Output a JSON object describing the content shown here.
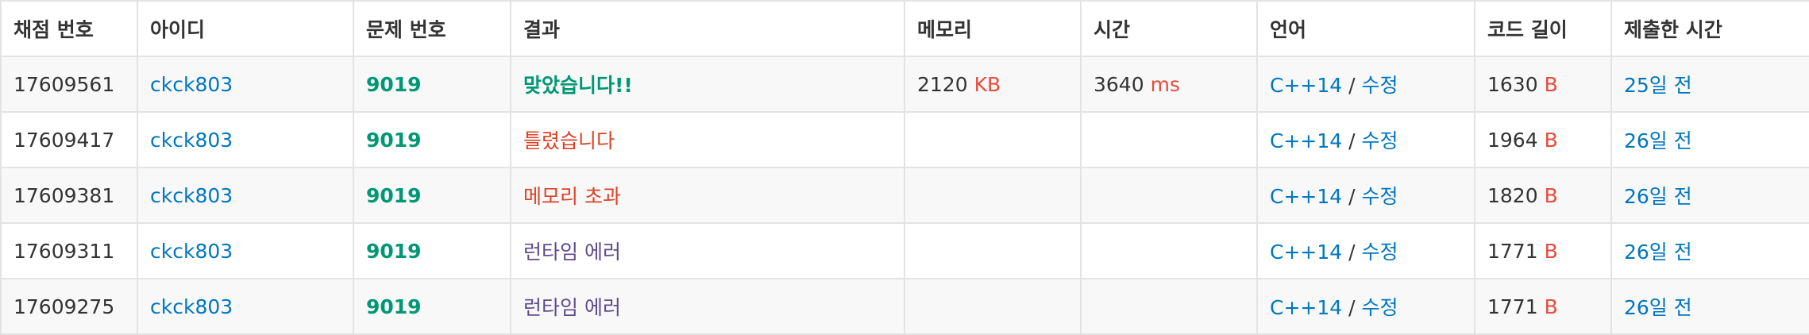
{
  "colors": {
    "link": "#0076c0",
    "accepted": "#009874",
    "error_red": "#dd4124",
    "runtime_error": "#5f4b8b",
    "unit": "#e74c3c",
    "row_alt": "#f8f8f8",
    "border": "#e3e3e3"
  },
  "headers": {
    "submission_id": "채점 번호",
    "user_id": "아이디",
    "problem_id": "문제 번호",
    "result": "결과",
    "memory": "메모리",
    "time": "시간",
    "language": "언어",
    "code_length": "코드 길이",
    "submitted_at": "제출한 시간"
  },
  "rows": [
    {
      "submission_id": "17609561",
      "user_id": "ckck803",
      "problem_id": "9019",
      "result": "맞았습니다!!",
      "result_status": "accepted",
      "memory_value": "2120",
      "memory_unit": "KB",
      "time_value": "3640",
      "time_unit": "ms",
      "language": "C++14",
      "lang_separator": " / ",
      "edit_label": "수정",
      "code_length_value": "1630",
      "code_length_unit": "B",
      "submitted_at": "25일 전"
    },
    {
      "submission_id": "17609417",
      "user_id": "ckck803",
      "problem_id": "9019",
      "result": "틀렸습니다",
      "result_status": "wrong",
      "memory_value": "",
      "memory_unit": "",
      "time_value": "",
      "time_unit": "",
      "language": "C++14",
      "lang_separator": " / ",
      "edit_label": "수정",
      "code_length_value": "1964",
      "code_length_unit": "B",
      "submitted_at": "26일 전"
    },
    {
      "submission_id": "17609381",
      "user_id": "ckck803",
      "problem_id": "9019",
      "result": "메모리 초과",
      "result_status": "memory",
      "memory_value": "",
      "memory_unit": "",
      "time_value": "",
      "time_unit": "",
      "language": "C++14",
      "lang_separator": " / ",
      "edit_label": "수정",
      "code_length_value": "1820",
      "code_length_unit": "B",
      "submitted_at": "26일 전"
    },
    {
      "submission_id": "17609311",
      "user_id": "ckck803",
      "problem_id": "9019",
      "result": "런타임 에러",
      "result_status": "runtime",
      "memory_value": "",
      "memory_unit": "",
      "time_value": "",
      "time_unit": "",
      "language": "C++14",
      "lang_separator": " / ",
      "edit_label": "수정",
      "code_length_value": "1771",
      "code_length_unit": "B",
      "submitted_at": "26일 전"
    },
    {
      "submission_id": "17609275",
      "user_id": "ckck803",
      "problem_id": "9019",
      "result": "런타임 에러",
      "result_status": "runtime",
      "memory_value": "",
      "memory_unit": "",
      "time_value": "",
      "time_unit": "",
      "language": "C++14",
      "lang_separator": " / ",
      "edit_label": "수정",
      "code_length_value": "1771",
      "code_length_unit": "B",
      "submitted_at": "26일 전"
    }
  ]
}
